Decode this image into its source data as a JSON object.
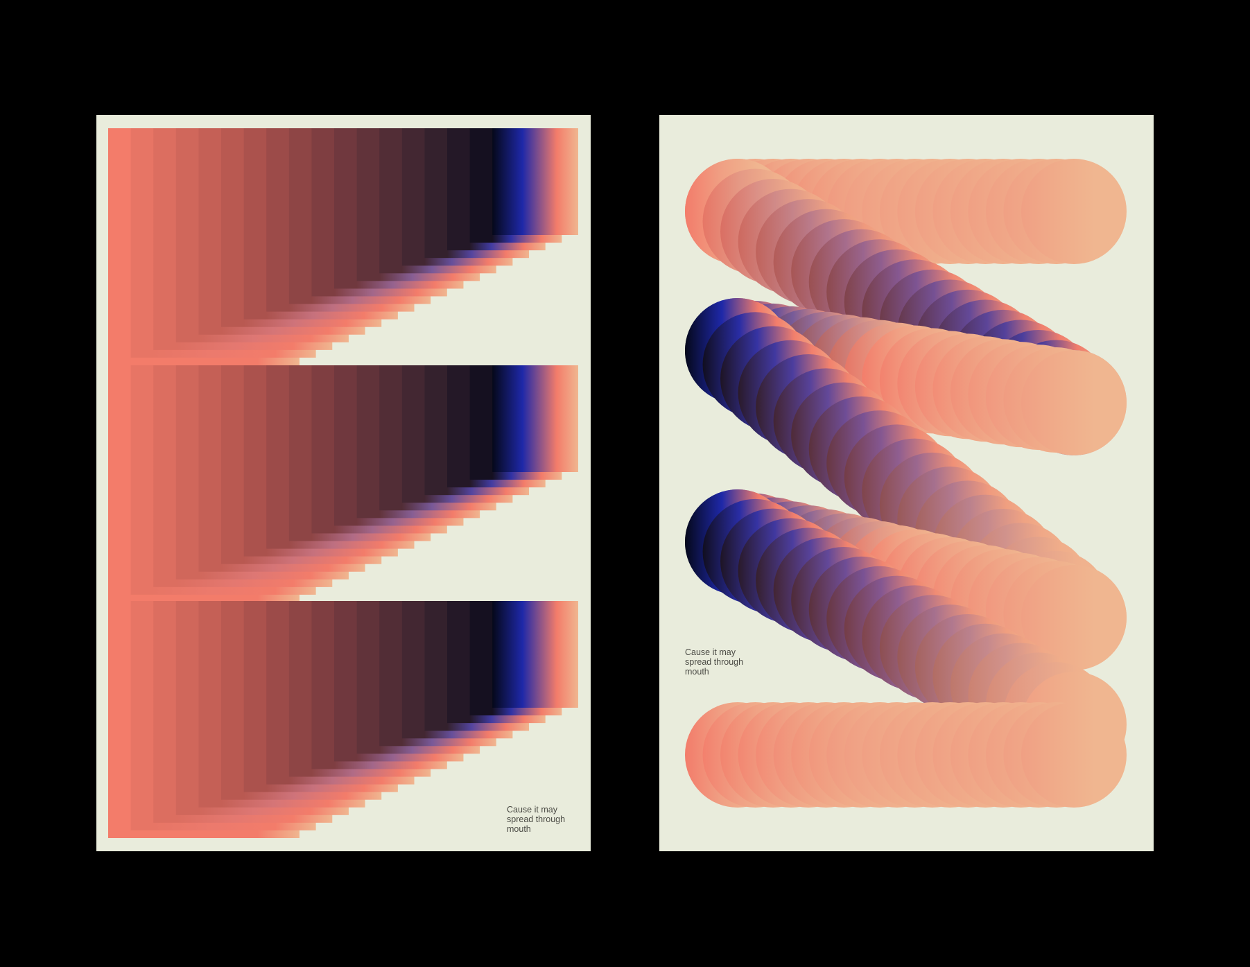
{
  "posters": [
    {
      "caption": "Cause it may\nspread through\nmouth"
    },
    {
      "caption": "Cause it may\nspread through\nmouth"
    }
  ],
  "colors": {
    "background": "#000000",
    "paper": "#e9ecdc",
    "salmon": "#f37c6a",
    "peach": "#f0b690",
    "navy": "#05081a",
    "blue": "#1e28a8",
    "purple": "#7a5a98",
    "text": "#4a4a44"
  }
}
